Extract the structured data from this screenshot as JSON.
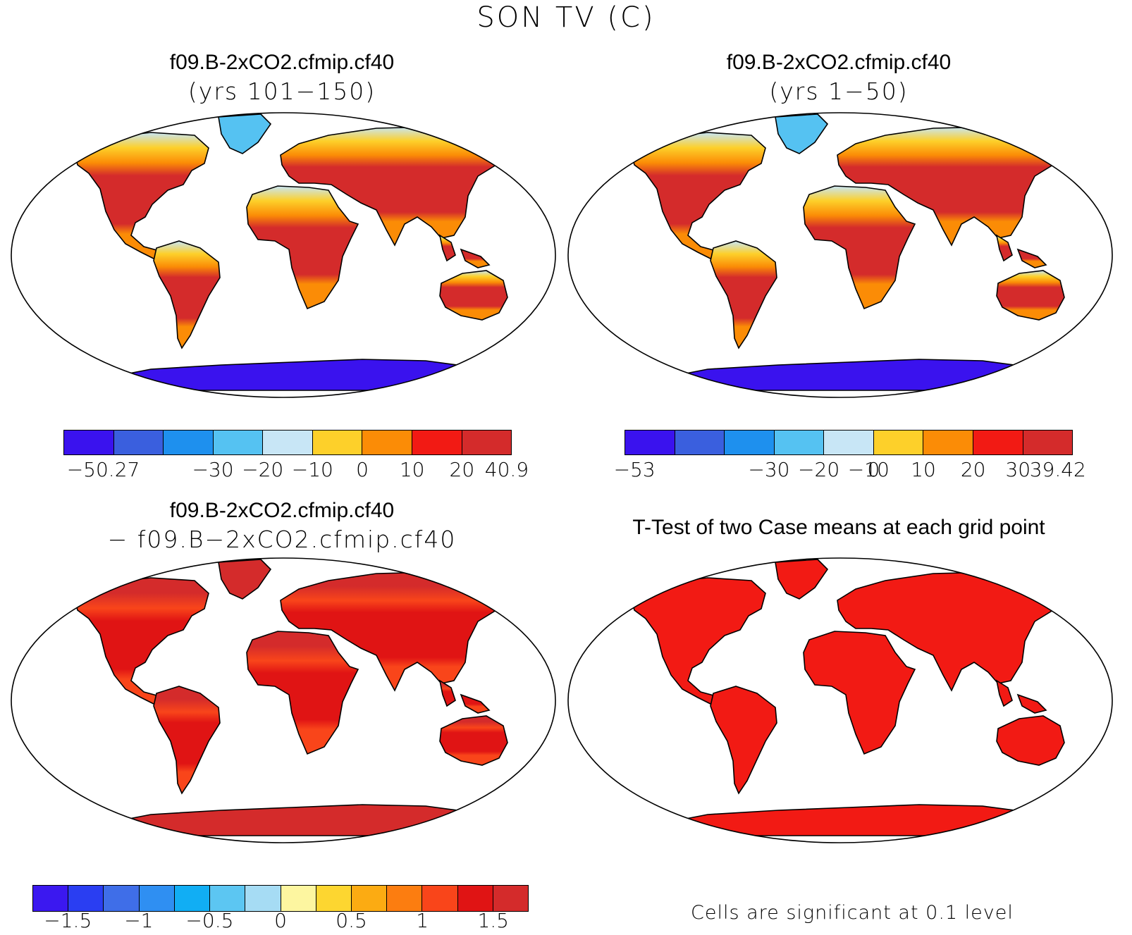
{
  "figure": {
    "title": "SON TV (C)"
  },
  "panels": [
    {
      "id": "case1",
      "title": "f09.B-2xCO2.cfmip.cf40",
      "subtitle": "(yrs 101−150)",
      "colorbar": {
        "colors": [
          "#3a12ee",
          "#3a5fde",
          "#1e90ee",
          "#55c2f2",
          "#c8e6f6",
          "#fdd02a",
          "#fb8c06",
          "#f21a14",
          "#d42b2b"
        ],
        "labels": [
          "−50.27",
          "−30",
          "−20",
          "−10",
          "0",
          "10",
          "20",
          "40.9"
        ]
      }
    },
    {
      "id": "case2",
      "title": "f09.B-2xCO2.cfmip.cf40",
      "subtitle": "(yrs 1−50)",
      "colorbar": {
        "colors": [
          "#3a12ee",
          "#3a5fde",
          "#1e90ee",
          "#55c2f2",
          "#c8e6f6",
          "#fdd02a",
          "#fb8c06",
          "#f21a14",
          "#d42b2b"
        ],
        "labels": [
          "−53",
          "−30",
          "−20",
          "−10",
          "0",
          "10",
          "20",
          "30",
          "39.42"
        ]
      }
    },
    {
      "id": "difference",
      "title": "f09.B-2xCO2.cfmip.cf40",
      "subtitle": "− f09.B−2xCO2.cfmip.cf40",
      "colorbar": {
        "colors": [
          "#3b18f0",
          "#2a3ef2",
          "#3f6ee8",
          "#2f8ff2",
          "#11aef4",
          "#5cc6f2",
          "#a6dcf4",
          "#fdf6a0",
          "#fdd630",
          "#fcab12",
          "#fc7d10",
          "#f9451a",
          "#e01414",
          "#d42b2b"
        ],
        "labels": [
          "−1.5",
          "−1",
          "−0.5",
          "0",
          "0.5",
          "1",
          "1.5"
        ]
      }
    },
    {
      "id": "ttest",
      "title": "T-Test of two Case means at each grid point",
      "note": "Cells are significant at 0.1 level"
    }
  ],
  "map_colors": {
    "case1": {
      "north": "#fdd02a",
      "mid": "#fb8c06",
      "trop": "#d42b2b",
      "ice": "#c8e6f6",
      "green": "#55c2f2",
      "ant": "#3a12ee"
    },
    "case2": {
      "north": "#fdd02a",
      "mid": "#fb8c06",
      "trop": "#d42b2b",
      "ice": "#c8e6f6",
      "green": "#55c2f2",
      "ant": "#3a12ee"
    },
    "difference": {
      "north": "#d42b2b",
      "mid": "#f9451a",
      "trop": "#e01414",
      "ice": "#d42b2b",
      "green": "#d42b2b",
      "ant": "#d42b2b"
    },
    "ttest": {
      "north": "#f21a14",
      "mid": "#f21a14",
      "trop": "#f21a14",
      "ice": "#f21a14",
      "green": "#f21a14",
      "ant": "#f21a14"
    }
  }
}
